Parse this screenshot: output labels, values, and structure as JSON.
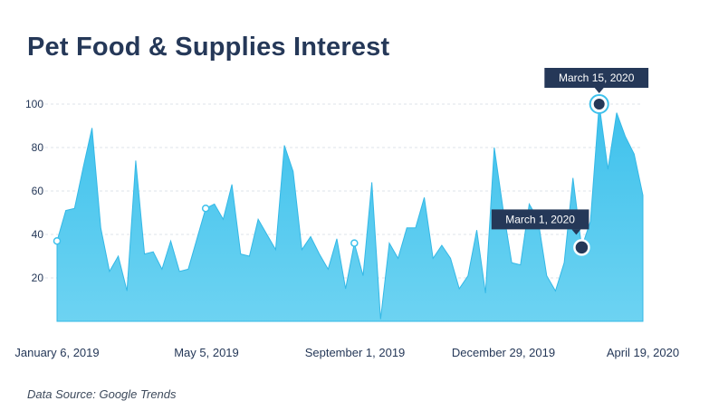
{
  "chart_data": {
    "type": "area",
    "title": "Pet Food & Supplies Interest",
    "source": "Data Source: Google Trends",
    "ylim": [
      0,
      100
    ],
    "yticks": [
      20,
      40,
      60,
      80,
      100
    ],
    "xtick_labels": [
      "January 6, 2019",
      "May 5, 2019",
      "September 1, 2019",
      "December 29, 2019",
      "April 19, 2020"
    ],
    "values": [
      37,
      51,
      52,
      71,
      89,
      43,
      23,
      30,
      14,
      74,
      31,
      32,
      24,
      37,
      23,
      24,
      38,
      52,
      54,
      47,
      63,
      31,
      30,
      47,
      40,
      33,
      81,
      69,
      33,
      39,
      31,
      24,
      38,
      15,
      36,
      21,
      64,
      1,
      36,
      29,
      43,
      43,
      57,
      29,
      35,
      29,
      15,
      21,
      42,
      13,
      80,
      52,
      27,
      26,
      54,
      47,
      21,
      14,
      27,
      66,
      34,
      46,
      100,
      70,
      96,
      85,
      77,
      58
    ],
    "markers": [
      {
        "index": 0,
        "style": "open"
      },
      {
        "index": 17,
        "style": "open"
      },
      {
        "index": 34,
        "style": "open"
      }
    ],
    "annotations": [
      {
        "label": "March 1, 2020",
        "index": 60
      },
      {
        "label": "March 15, 2020",
        "index": 62
      }
    ],
    "colors": {
      "area_top": "#3ec1ec",
      "area_bottom": "#6dd3f2",
      "callout_bg": "#253858",
      "axis_text": "#253858",
      "grid": "#dde3ea"
    }
  }
}
